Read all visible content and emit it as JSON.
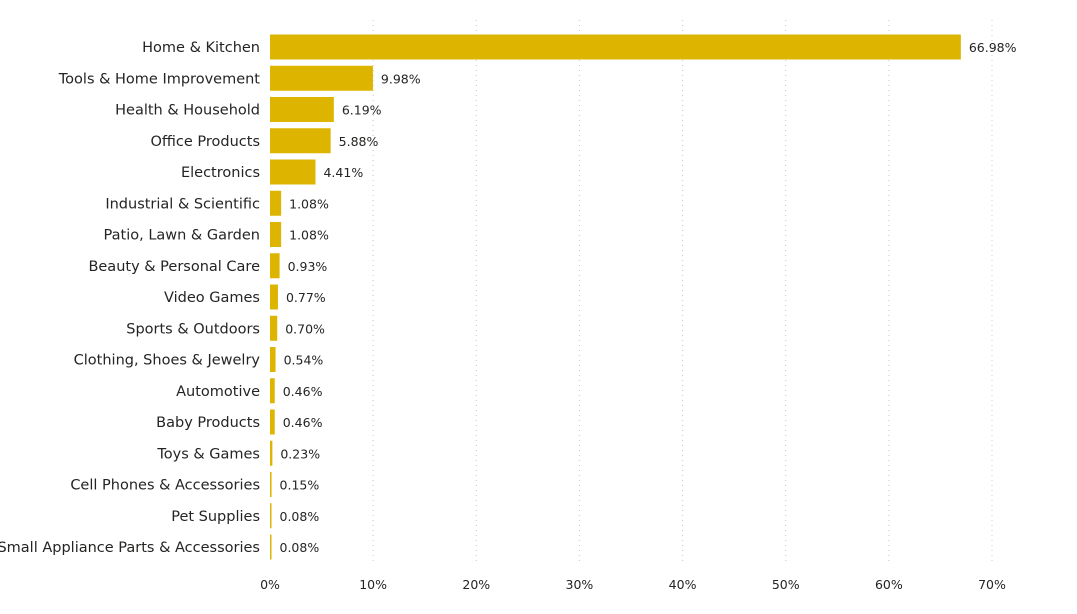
{
  "chart_data": {
    "type": "bar",
    "orientation": "horizontal",
    "categories": [
      "Home & Kitchen",
      "Tools & Home Improvement",
      "Health & Household",
      "Office Products",
      "Electronics",
      "Industrial & Scientific",
      "Patio, Lawn & Garden",
      "Beauty & Personal Care",
      "Video Games",
      "Sports & Outdoors",
      "Clothing, Shoes & Jewelry",
      "Automotive",
      "Baby Products",
      "Toys & Games",
      "Cell Phones & Accessories",
      "Pet Supplies",
      "Small Appliance Parts & Accessories"
    ],
    "values": [
      66.98,
      9.98,
      6.19,
      5.88,
      4.41,
      1.08,
      1.08,
      0.93,
      0.77,
      0.7,
      0.54,
      0.46,
      0.46,
      0.23,
      0.15,
      0.08,
      0.08
    ],
    "value_labels": [
      "66.98%",
      "9.98%",
      "6.19%",
      "5.88%",
      "4.41%",
      "1.08%",
      "1.08%",
      "0.93%",
      "0.77%",
      "0.70%",
      "0.54%",
      "0.46%",
      "0.46%",
      "0.23%",
      "0.15%",
      "0.08%",
      "0.08%"
    ],
    "x_ticks": [
      "0%",
      "10%",
      "20%",
      "30%",
      "40%",
      "50%",
      "60%",
      "70%"
    ],
    "xlim": [
      0,
      70
    ],
    "bar_color": "#DDB500",
    "grid": true,
    "title": "",
    "xlabel": "",
    "ylabel": ""
  }
}
